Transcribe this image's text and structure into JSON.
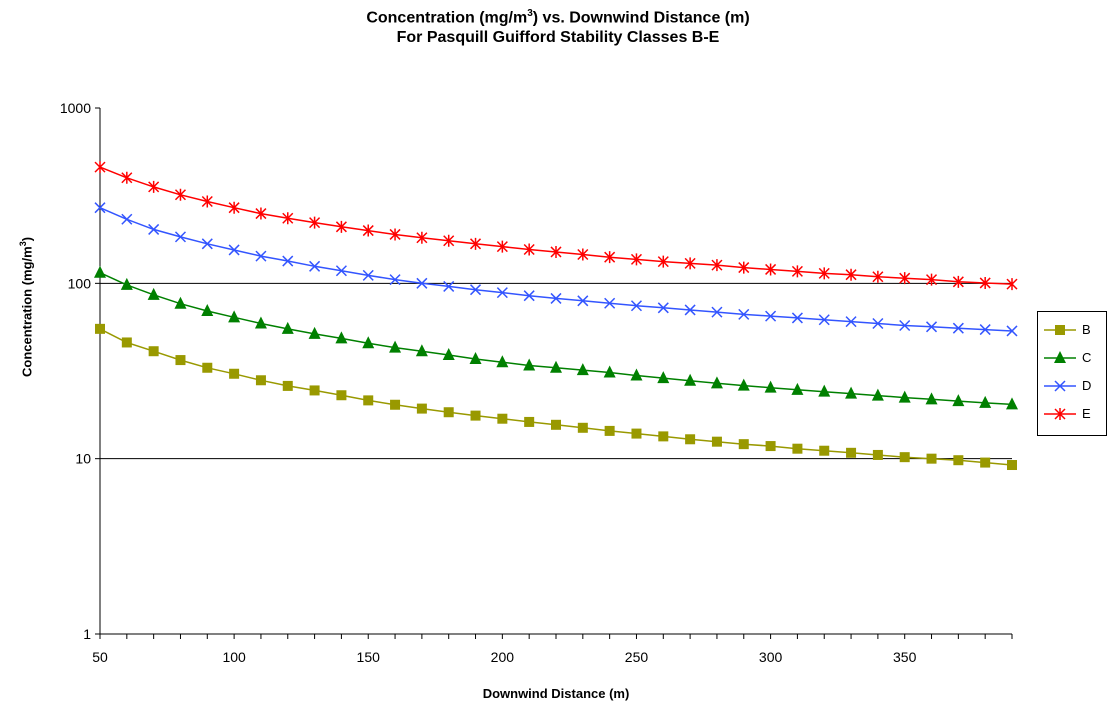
{
  "chart_data": {
    "type": "line",
    "title_prefix": "Concentration (mg/m",
    "title_sup": "3",
    "title_suffix": ") vs. Downwind Distance (m)",
    "subtitle": "For Pasquill Guifford Stability Classes B-E",
    "xlabel": "Downwind Distance (m)",
    "ylabel_prefix": "Concentration (mg/m",
    "ylabel_sup": "3",
    "ylabel_suffix": ")",
    "y_scale": "log",
    "xlim": [
      50,
      390
    ],
    "ylim": [
      1,
      1000
    ],
    "x_ticks": [
      "50",
      "100",
      "150",
      "200",
      "250",
      "300",
      "350"
    ],
    "y_ticks": [
      "1",
      "10",
      "100",
      "1000"
    ],
    "grid": "horizontal major",
    "legend_position": "right",
    "x": [
      50,
      60,
      70,
      80,
      90,
      100,
      110,
      120,
      130,
      140,
      150,
      160,
      170,
      180,
      190,
      200,
      210,
      220,
      230,
      240,
      250,
      260,
      270,
      280,
      290,
      300,
      310,
      320,
      330,
      340,
      350,
      360,
      370,
      380,
      390
    ],
    "series": [
      {
        "name": "B",
        "color": "#999900",
        "marker": "square",
        "values": [
          55,
          46,
          41,
          36.5,
          33,
          30.5,
          28,
          26,
          24.5,
          23,
          21.5,
          20.3,
          19.3,
          18.4,
          17.6,
          16.9,
          16.2,
          15.6,
          15.0,
          14.4,
          13.9,
          13.4,
          12.9,
          12.5,
          12.1,
          11.8,
          11.4,
          11.1,
          10.8,
          10.5,
          10.2,
          10.0,
          9.8,
          9.5,
          9.2
        ]
      },
      {
        "name": "C",
        "color": "#008000",
        "marker": "triangle",
        "values": [
          115,
          98,
          86,
          76.5,
          69.5,
          64,
          59,
          55,
          51.5,
          48.5,
          45.5,
          43,
          41,
          39,
          37,
          35.5,
          34,
          33,
          32,
          31,
          29.8,
          28.8,
          27.8,
          26.9,
          26.1,
          25.4,
          24.7,
          24.1,
          23.5,
          22.9,
          22.3,
          21.8,
          21.3,
          20.8,
          20.4
        ]
      },
      {
        "name": "D",
        "color": "#3355ff",
        "marker": "x",
        "values": [
          270,
          232,
          203,
          184,
          168,
          155,
          143,
          134,
          125,
          118,
          111,
          105,
          100,
          96,
          92,
          88.5,
          85,
          82,
          79.5,
          77,
          74.5,
          72.5,
          70.5,
          68.5,
          66.5,
          65,
          63.5,
          62,
          60.5,
          59,
          57.5,
          56.5,
          55.5,
          54.5,
          53.5
        ]
      },
      {
        "name": "E",
        "color": "#ff0000",
        "marker": "star",
        "values": [
          460,
          400,
          355,
          320,
          293,
          270,
          250,
          235,
          222,
          210,
          200,
          190,
          182,
          175,
          168,
          162,
          156,
          151,
          146,
          141,
          137,
          133,
          130,
          127,
          123,
          120,
          117,
          114,
          112,
          109,
          107,
          105,
          102,
          100.5,
          99
        ]
      }
    ]
  }
}
